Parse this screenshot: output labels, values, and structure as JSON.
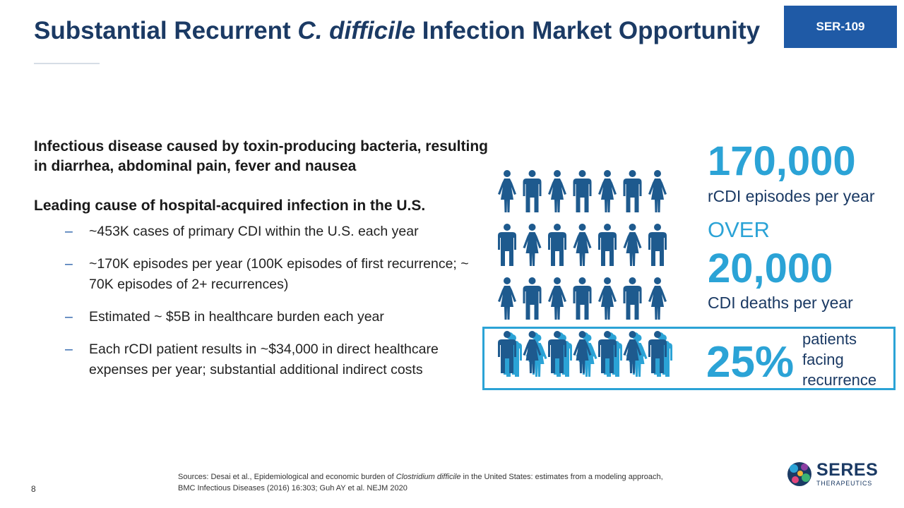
{
  "header": {
    "title_part1": "Substantial Recurrent ",
    "title_italic": "C. difficile",
    "title_part2": " Infection Market Opportunity",
    "badge": "SER-109"
  },
  "content": {
    "lead1": "Infectious disease caused by toxin-producing bacteria, resulting in diarrhea, abdominal pain, fever and nausea",
    "lead2": "Leading cause of hospital-acquired infection in the U.S.",
    "bullet_marker": "–",
    "bullets": [
      "~453K cases of primary CDI within the U.S. each year",
      "~170K episodes per year (100K episodes of first recurrence; ~ 70K episodes of 2+ recurrences)",
      "Estimated ~ $5B in healthcare burden each year",
      "Each rCDI patient results in ~$34,000 in direct healthcare expenses per year; substantial additional indirect costs"
    ]
  },
  "stats": {
    "episodes_value": "170,000",
    "episodes_label": "rCDI episodes per year",
    "over": "OVER",
    "deaths_value": "20,000",
    "deaths_label": "CDI deaths per year",
    "recurrence_value": "25%",
    "recurrence_label_1": "patients",
    "recurrence_label_2": "facing",
    "recurrence_label_3": "recurrence"
  },
  "figures": {
    "rows": 4,
    "cols": 7,
    "recurrence_row": 4,
    "dark_color": "#1e5a8e",
    "light_color": "#2ba3d6",
    "icon": "person-icon"
  },
  "footer": {
    "sources_pre": "Sources: Desai et al., Epidemiological and economic burden of ",
    "sources_italic": "Clostridium difficile",
    "sources_post": " in the United States: estimates from a modeling approach,",
    "sources_line2": "BMC Infectious Diseases (2016) 16:303; Guh AY et al. NEJM 2020",
    "page_number": "8",
    "logo_word": "SERES",
    "logo_sub": "THERAPEUTICS"
  },
  "colors": {
    "title": "#1b3a64",
    "accent": "#2ba3d6",
    "badge": "#1f5aa6"
  }
}
